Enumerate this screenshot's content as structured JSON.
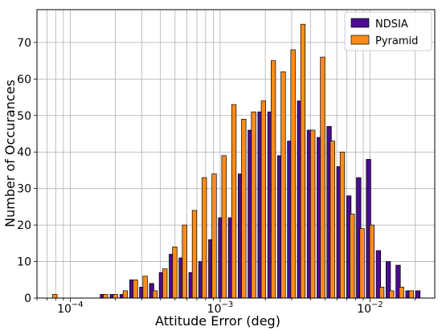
{
  "chart_data": {
    "type": "bar",
    "xlabel": "Attitude Error (deg)",
    "ylabel": "Number of Occurances",
    "x_scale": "log",
    "xlim": [
      6e-05,
      0.027
    ],
    "ylim": [
      0,
      79
    ],
    "y_ticks": [
      "0",
      "10",
      "20",
      "30",
      "40",
      "50",
      "60",
      "70"
    ],
    "x_ticks": [
      {
        "base": "10",
        "exp": "−4",
        "value": 0.0001
      },
      {
        "base": "10",
        "exp": "−3",
        "value": 0.001
      },
      {
        "base": "10",
        "exp": "−2",
        "value": 0.01
      }
    ],
    "grid": true,
    "legend": "top-right",
    "colors": {
      "NDSIA": "#4b0d8f",
      "Pyramid": "#ff8c1a",
      "edge": "#000000"
    },
    "series": [
      {
        "name": "NDSIA",
        "values": [
          [
            0.000164,
            1
          ],
          [
            0.000191,
            1
          ],
          [
            0.000222,
            1
          ],
          [
            0.000258,
            5
          ],
          [
            0.0003,
            3
          ],
          [
            0.000349,
            4
          ],
          [
            0.000406,
            7
          ],
          [
            0.000473,
            12
          ],
          [
            0.00055,
            11
          ],
          [
            0.00064,
            7
          ],
          [
            0.000744,
            10
          ],
          [
            0.000866,
            16
          ],
          [
            0.001008,
            22
          ],
          [
            0.001172,
            22
          ],
          [
            0.001364,
            34
          ],
          [
            0.001587,
            46
          ],
          [
            0.001846,
            51
          ],
          [
            0.002148,
            51
          ],
          [
            0.002499,
            39
          ],
          [
            0.002908,
            43
          ],
          [
            0.003383,
            54
          ],
          [
            0.003936,
            46
          ],
          [
            0.00458,
            44
          ],
          [
            0.005329,
            47
          ],
          [
            0.0062,
            36
          ],
          [
            0.007214,
            28
          ],
          [
            0.008393,
            33
          ],
          [
            0.009765,
            38
          ],
          [
            0.011362,
            13
          ],
          [
            0.013219,
            10
          ],
          [
            0.01538,
            9
          ],
          [
            0.017895,
            2
          ],
          [
            0.020821,
            2
          ]
        ]
      },
      {
        "name": "Pyramid",
        "values": [
          [
            7.9e-05,
            1
          ],
          [
            0.000172,
            1
          ],
          [
            0.0002,
            1
          ],
          [
            0.000233,
            2
          ],
          [
            0.000272,
            5
          ],
          [
            0.000316,
            6
          ],
          [
            0.000368,
            2
          ],
          [
            0.000428,
            8
          ],
          [
            0.000498,
            14
          ],
          [
            0.000579,
            20
          ],
          [
            0.000674,
            24
          ],
          [
            0.000784,
            33
          ],
          [
            0.000912,
            34
          ],
          [
            0.001061,
            39
          ],
          [
            0.001235,
            53
          ],
          [
            0.001437,
            49
          ],
          [
            0.001672,
            51
          ],
          [
            0.001945,
            54
          ],
          [
            0.002263,
            65
          ],
          [
            0.002633,
            62
          ],
          [
            0.003063,
            68
          ],
          [
            0.003564,
            75
          ],
          [
            0.004147,
            46
          ],
          [
            0.004825,
            66
          ],
          [
            0.005614,
            43
          ],
          [
            0.006532,
            40
          ],
          [
            0.007599,
            23
          ],
          [
            0.008842,
            19
          ],
          [
            0.010288,
            20
          ],
          [
            0.011969,
            3
          ],
          [
            0.013926,
            2
          ],
          [
            0.016203,
            3
          ],
          [
            0.018852,
            2
          ]
        ]
      }
    ]
  }
}
